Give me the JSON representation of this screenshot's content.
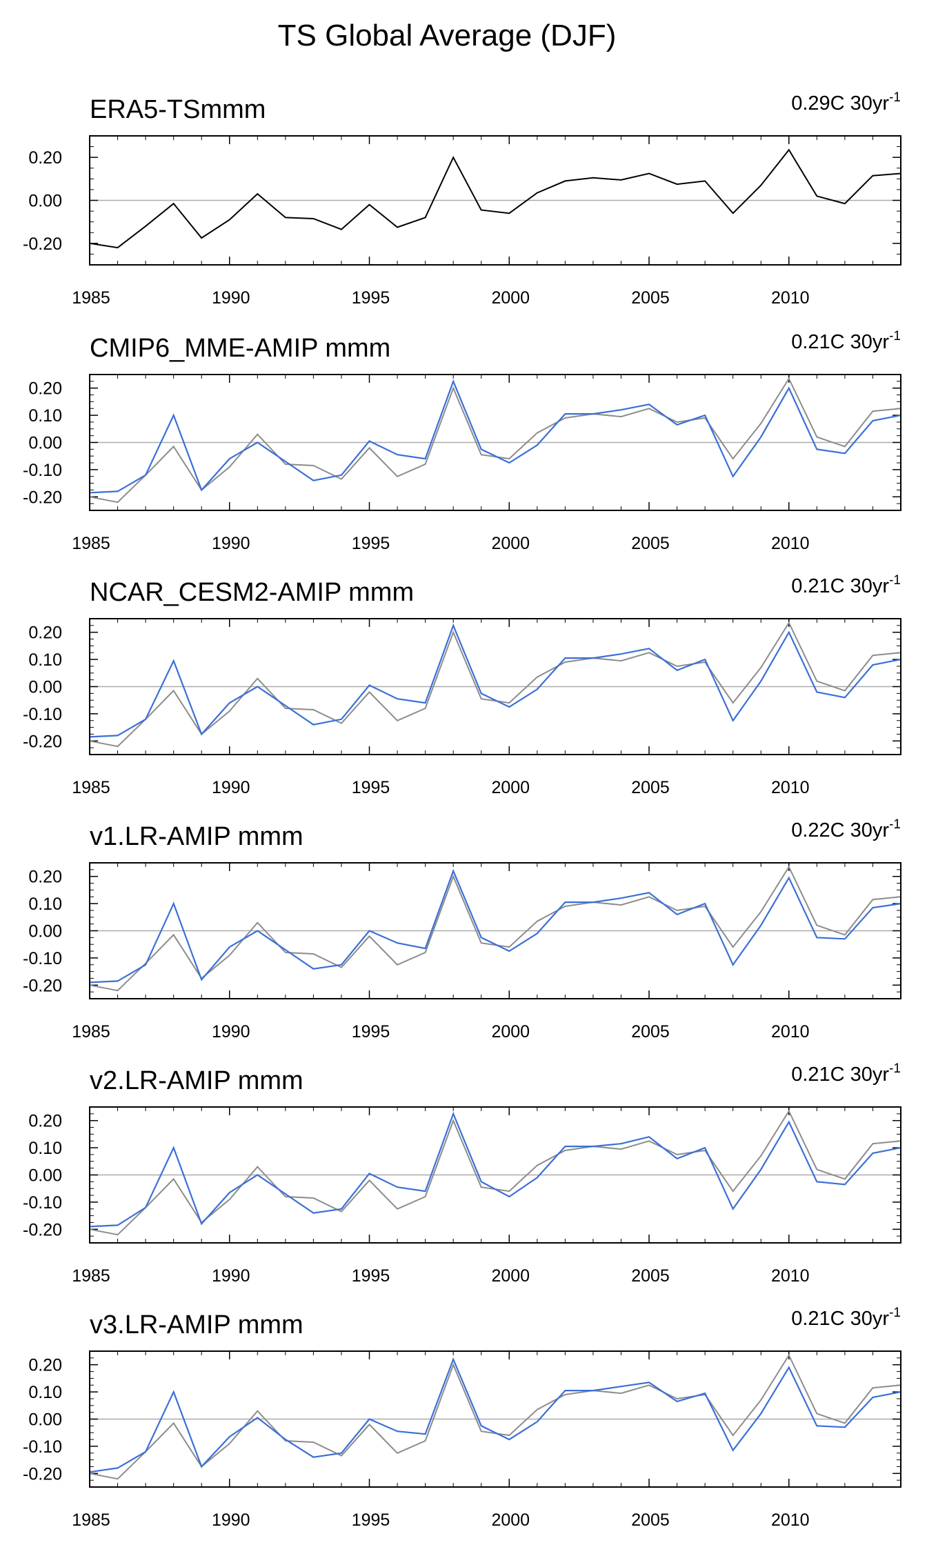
{
  "figure": {
    "title": "TS Global Average (DJF)"
  },
  "colors": {
    "observed": "#000000",
    "observed_ref": "#8c8c8c",
    "model": "#3a6fd8",
    "zero_line": "#aaaaaa",
    "axis": "#000000"
  },
  "chart_data": [
    {
      "type": "line",
      "title": "ERA5-TSmmm",
      "trend": {
        "value": "0.29C 30yr",
        "exp": "-1"
      },
      "x": [
        1985,
        1986,
        1987,
        1988,
        1989,
        1990,
        1991,
        1992,
        1993,
        1994,
        1995,
        1996,
        1997,
        1998,
        1999,
        2000,
        2001,
        2002,
        2003,
        2004,
        2005,
        2006,
        2007,
        2008,
        2009,
        2010,
        2011,
        2012,
        2013,
        2014
      ],
      "series": [
        {
          "role": "observed",
          "values": [
            -0.2,
            -0.22,
            -0.12,
            -0.015,
            -0.175,
            -0.09,
            0.03,
            -0.08,
            -0.085,
            -0.135,
            -0.02,
            -0.125,
            -0.08,
            0.2,
            -0.045,
            -0.06,
            0.035,
            0.09,
            0.105,
            0.095,
            0.125,
            0.075,
            0.09,
            -0.06,
            0.07,
            0.235,
            0.02,
            -0.015,
            0.115,
            0.125
          ]
        }
      ],
      "xlim": [
        1985,
        2014
      ],
      "ylim": [
        -0.3,
        0.3
      ],
      "yticks": [
        -0.2,
        0.0,
        0.2
      ],
      "ytick_labels": [
        "-0.20",
        "0.00",
        "0.20"
      ],
      "xticks": [
        1985,
        1990,
        1995,
        2000,
        2005,
        2010
      ],
      "xtick_labels": [
        "1985",
        "1990",
        "1995",
        "2000",
        "2005",
        "2010"
      ],
      "zero_line": true
    },
    {
      "type": "line",
      "title": "CMIP6_MME-AMIP  mmm",
      "trend": {
        "value": "0.21C 30yr",
        "exp": "-1"
      },
      "x": [
        1985,
        1986,
        1987,
        1988,
        1989,
        1990,
        1991,
        1992,
        1993,
        1994,
        1995,
        1996,
        1997,
        1998,
        1999,
        2000,
        2001,
        2002,
        2003,
        2004,
        2005,
        2006,
        2007,
        2008,
        2009,
        2010,
        2011,
        2012,
        2013,
        2014
      ],
      "series": [
        {
          "role": "observed_ref",
          "values": [
            -0.2,
            -0.22,
            -0.12,
            -0.015,
            -0.175,
            -0.09,
            0.03,
            -0.08,
            -0.085,
            -0.135,
            -0.02,
            -0.125,
            -0.08,
            0.2,
            -0.045,
            -0.06,
            0.035,
            0.09,
            0.105,
            0.095,
            0.125,
            0.075,
            0.09,
            -0.06,
            0.07,
            0.235,
            0.02,
            -0.015,
            0.115,
            0.125
          ]
        },
        {
          "role": "model",
          "values": [
            -0.185,
            -0.18,
            -0.12,
            0.1,
            -0.175,
            -0.06,
            0.0,
            -0.07,
            -0.14,
            -0.12,
            0.005,
            -0.045,
            -0.06,
            0.225,
            -0.025,
            -0.075,
            -0.01,
            0.105,
            0.105,
            0.12,
            0.14,
            0.065,
            0.1,
            -0.125,
            0.02,
            0.2,
            -0.025,
            -0.04,
            0.08,
            0.1
          ]
        }
      ],
      "xlim": [
        1985,
        2014
      ],
      "ylim": [
        -0.25,
        0.25
      ],
      "yticks": [
        -0.2,
        -0.1,
        0.0,
        0.1,
        0.2
      ],
      "ytick_labels": [
        "-0.20",
        "-0.10",
        "0.00",
        "0.10",
        "0.20"
      ],
      "xticks": [
        1985,
        1990,
        1995,
        2000,
        2005,
        2010
      ],
      "xtick_labels": [
        "1985",
        "1990",
        "1995",
        "2000",
        "2005",
        "2010"
      ],
      "zero_line": true
    },
    {
      "type": "line",
      "title": "NCAR_CESM2-AMIP  mmm",
      "trend": {
        "value": "0.21C 30yr",
        "exp": "-1"
      },
      "x": [
        1985,
        1986,
        1987,
        1988,
        1989,
        1990,
        1991,
        1992,
        1993,
        1994,
        1995,
        1996,
        1997,
        1998,
        1999,
        2000,
        2001,
        2002,
        2003,
        2004,
        2005,
        2006,
        2007,
        2008,
        2009,
        2010,
        2011,
        2012,
        2013,
        2014
      ],
      "series": [
        {
          "role": "observed_ref",
          "values": [
            -0.2,
            -0.22,
            -0.12,
            -0.015,
            -0.175,
            -0.09,
            0.03,
            -0.08,
            -0.085,
            -0.135,
            -0.02,
            -0.125,
            -0.08,
            0.2,
            -0.045,
            -0.06,
            0.035,
            0.09,
            0.105,
            0.095,
            0.125,
            0.075,
            0.09,
            -0.06,
            0.07,
            0.235,
            0.02,
            -0.015,
            0.115,
            0.125
          ]
        },
        {
          "role": "model",
          "values": [
            -0.185,
            -0.18,
            -0.12,
            0.095,
            -0.175,
            -0.06,
            0.0,
            -0.07,
            -0.14,
            -0.12,
            0.005,
            -0.045,
            -0.06,
            0.225,
            -0.025,
            -0.075,
            -0.01,
            0.105,
            0.105,
            0.12,
            0.14,
            0.06,
            0.1,
            -0.125,
            0.02,
            0.2,
            -0.02,
            -0.04,
            0.08,
            0.1
          ]
        }
      ],
      "xlim": [
        1985,
        2014
      ],
      "ylim": [
        -0.25,
        0.25
      ],
      "yticks": [
        -0.2,
        -0.1,
        0.0,
        0.1,
        0.2
      ],
      "ytick_labels": [
        "-0.20",
        "-0.10",
        "0.00",
        "0.10",
        "0.20"
      ],
      "xticks": [
        1985,
        1990,
        1995,
        2000,
        2005,
        2010
      ],
      "xtick_labels": [
        "1985",
        "1990",
        "1995",
        "2000",
        "2005",
        "2010"
      ],
      "zero_line": true
    },
    {
      "type": "line",
      "title": "v1.LR-AMIP  mmm",
      "trend": {
        "value": "0.22C 30yr",
        "exp": "-1"
      },
      "x": [
        1985,
        1986,
        1987,
        1988,
        1989,
        1990,
        1991,
        1992,
        1993,
        1994,
        1995,
        1996,
        1997,
        1998,
        1999,
        2000,
        2001,
        2002,
        2003,
        2004,
        2005,
        2006,
        2007,
        2008,
        2009,
        2010,
        2011,
        2012,
        2013,
        2014
      ],
      "series": [
        {
          "role": "observed_ref",
          "values": [
            -0.2,
            -0.22,
            -0.12,
            -0.015,
            -0.175,
            -0.09,
            0.03,
            -0.08,
            -0.085,
            -0.135,
            -0.02,
            -0.125,
            -0.08,
            0.2,
            -0.045,
            -0.06,
            0.035,
            0.09,
            0.105,
            0.095,
            0.125,
            0.075,
            0.09,
            -0.06,
            0.07,
            0.235,
            0.02,
            -0.015,
            0.115,
            0.125
          ]
        },
        {
          "role": "model",
          "values": [
            -0.19,
            -0.185,
            -0.125,
            0.1,
            -0.18,
            -0.06,
            0.0,
            -0.07,
            -0.14,
            -0.125,
            0.0,
            -0.045,
            -0.065,
            0.22,
            -0.025,
            -0.075,
            -0.01,
            0.105,
            0.105,
            0.12,
            0.14,
            0.06,
            0.1,
            -0.125,
            0.02,
            0.195,
            -0.025,
            -0.03,
            0.085,
            0.1
          ]
        }
      ],
      "xlim": [
        1985,
        2014
      ],
      "ylim": [
        -0.25,
        0.25
      ],
      "yticks": [
        -0.2,
        -0.1,
        0.0,
        0.1,
        0.2
      ],
      "ytick_labels": [
        "-0.20",
        "-0.10",
        "0.00",
        "0.10",
        "0.20"
      ],
      "xticks": [
        1985,
        1990,
        1995,
        2000,
        2005,
        2010
      ],
      "xtick_labels": [
        "1985",
        "1990",
        "1995",
        "2000",
        "2005",
        "2010"
      ],
      "zero_line": true
    },
    {
      "type": "line",
      "title": "v2.LR-AMIP  mmm",
      "trend": {
        "value": "0.21C 30yr",
        "exp": "-1"
      },
      "x": [
        1985,
        1986,
        1987,
        1988,
        1989,
        1990,
        1991,
        1992,
        1993,
        1994,
        1995,
        1996,
        1997,
        1998,
        1999,
        2000,
        2001,
        2002,
        2003,
        2004,
        2005,
        2006,
        2007,
        2008,
        2009,
        2010,
        2011,
        2012,
        2013,
        2014
      ],
      "series": [
        {
          "role": "observed_ref",
          "values": [
            -0.2,
            -0.22,
            -0.12,
            -0.015,
            -0.175,
            -0.09,
            0.03,
            -0.08,
            -0.085,
            -0.135,
            -0.02,
            -0.125,
            -0.08,
            0.2,
            -0.045,
            -0.06,
            0.035,
            0.09,
            0.105,
            0.095,
            0.125,
            0.075,
            0.09,
            -0.06,
            0.07,
            0.235,
            0.02,
            -0.015,
            0.115,
            0.125
          ]
        },
        {
          "role": "model",
          "values": [
            -0.19,
            -0.185,
            -0.12,
            0.1,
            -0.18,
            -0.065,
            0.0,
            -0.07,
            -0.14,
            -0.125,
            0.005,
            -0.045,
            -0.06,
            0.225,
            -0.025,
            -0.08,
            -0.01,
            0.105,
            0.105,
            0.115,
            0.14,
            0.06,
            0.1,
            -0.125,
            0.02,
            0.195,
            -0.025,
            -0.035,
            0.08,
            0.1
          ]
        }
      ],
      "xlim": [
        1985,
        2014
      ],
      "ylim": [
        -0.25,
        0.25
      ],
      "yticks": [
        -0.2,
        -0.1,
        0.0,
        0.1,
        0.2
      ],
      "ytick_labels": [
        "-0.20",
        "-0.10",
        "0.00",
        "0.10",
        "0.20"
      ],
      "xticks": [
        1985,
        1990,
        1995,
        2000,
        2005,
        2010
      ],
      "xtick_labels": [
        "1985",
        "1990",
        "1995",
        "2000",
        "2005",
        "2010"
      ],
      "zero_line": true
    },
    {
      "type": "line",
      "title": "v3.LR-AMIP  mmm",
      "trend": {
        "value": "0.21C 30yr",
        "exp": "-1"
      },
      "x": [
        1985,
        1986,
        1987,
        1988,
        1989,
        1990,
        1991,
        1992,
        1993,
        1994,
        1995,
        1996,
        1997,
        1998,
        1999,
        2000,
        2001,
        2002,
        2003,
        2004,
        2005,
        2006,
        2007,
        2008,
        2009,
        2010,
        2011,
        2012,
        2013,
        2014
      ],
      "series": [
        {
          "role": "observed_ref",
          "values": [
            -0.2,
            -0.22,
            -0.12,
            -0.015,
            -0.175,
            -0.09,
            0.03,
            -0.08,
            -0.085,
            -0.135,
            -0.02,
            -0.125,
            -0.08,
            0.2,
            -0.045,
            -0.06,
            0.035,
            0.09,
            0.105,
            0.095,
            0.125,
            0.075,
            0.09,
            -0.06,
            0.07,
            0.235,
            0.02,
            -0.015,
            0.115,
            0.125
          ]
        },
        {
          "role": "model",
          "values": [
            -0.195,
            -0.18,
            -0.12,
            0.1,
            -0.175,
            -0.065,
            0.005,
            -0.075,
            -0.14,
            -0.125,
            0.0,
            -0.045,
            -0.055,
            0.22,
            -0.025,
            -0.075,
            -0.01,
            0.105,
            0.105,
            0.12,
            0.135,
            0.065,
            0.095,
            -0.115,
            0.02,
            0.19,
            -0.025,
            -0.03,
            0.08,
            0.1
          ]
        }
      ],
      "xlim": [
        1985,
        2014
      ],
      "ylim": [
        -0.25,
        0.25
      ],
      "yticks": [
        -0.2,
        -0.1,
        0.0,
        0.1,
        0.2
      ],
      "ytick_labels": [
        "-0.20",
        "-0.10",
        "0.00",
        "0.10",
        "0.20"
      ],
      "xticks": [
        1985,
        1990,
        1995,
        2000,
        2005,
        2010
      ],
      "xtick_labels": [
        "1985",
        "1990",
        "1995",
        "2000",
        "2005",
        "2010"
      ],
      "zero_line": true
    }
  ]
}
